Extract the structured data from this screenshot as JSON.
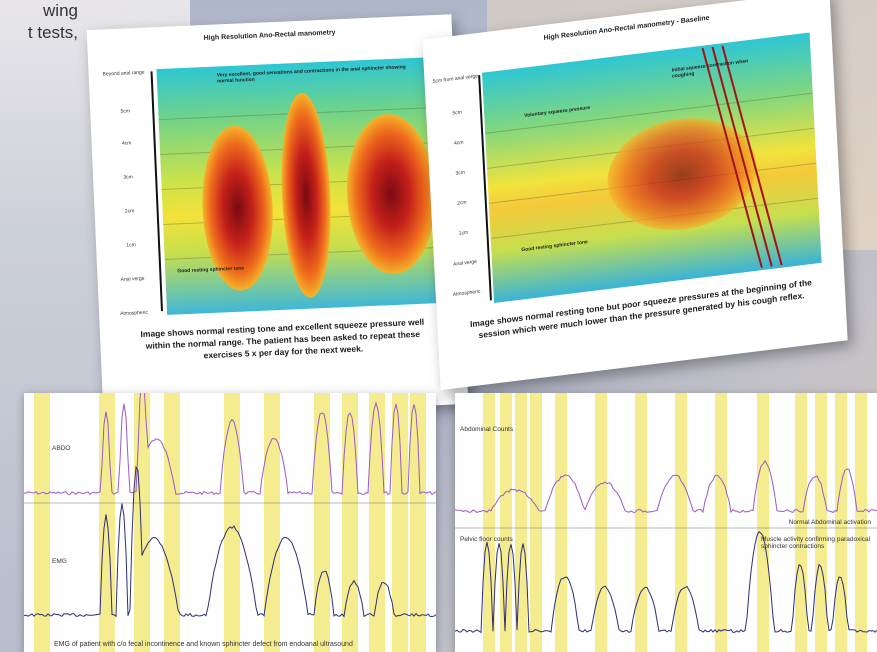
{
  "partial_text": {
    "line1": "wing",
    "line2": "t tests,"
  },
  "card1": {
    "title": "High Resolution Ano-Rectal manometry",
    "axis": [
      "Beyond anal range",
      "5cm",
      "4cm",
      "3cm",
      "2cm",
      "1cm",
      "Anal verge",
      "Atmospheric"
    ],
    "annotation_top": "Very excellent, good sensations and contractions in the anal sphincter showing normal function",
    "annotation_bottom": "Good resting sphincter tone",
    "caption": "Image shows normal resting tone and excellent squeeze pressure well within the normal range. The patient has been asked to repeat these exercises 5 x per day for the next week."
  },
  "card2": {
    "title": "High Resolution Ano-Rectal manometry - Baseline",
    "axis": [
      "5cm from anal verge",
      "5cm",
      "4cm",
      "3cm",
      "2cm",
      "1cm",
      "Anal verge",
      "Atmospheric"
    ],
    "annotation_1": "Voluntary squeeze pressure",
    "annotation_2": "Initial squeeze contraction when coughing",
    "annotation_3": "Good resting sphincter tone",
    "caption": "Image shows normal resting tone but poor squeeze pressures at the beginning of the session which were much lower than the pressure generated by his cough reflex."
  },
  "emg1": {
    "label_top": "ABDO",
    "label_bottom": "EMG",
    "caption": "EMG of patient with c/o fecal incontinence and known sphincter defect from endoanal ultrasound"
  },
  "emg2": {
    "label_top": "Abdominal Counts",
    "label_mid": "Normal Abdominal activation",
    "label_bottom": "Pelvic floor counts",
    "label_note": "Muscle activity confirming paradoxical sphincter contractions"
  },
  "colors": {
    "trace_top": "#9a5bc8",
    "trace_bottom": "#2c2f7a",
    "band": "#f4ec8f"
  }
}
